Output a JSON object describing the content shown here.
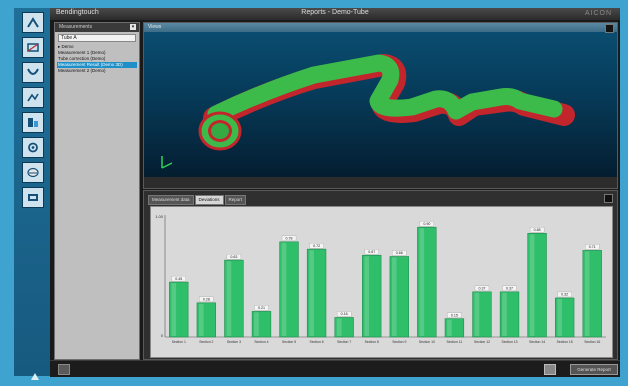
{
  "window": {
    "left_title": "Bendingtouch",
    "title": "Reports - Demo-Tube",
    "logo": "AICON"
  },
  "sidebar": {
    "title": "Measurements",
    "button": "▾",
    "search_value": "Tube A",
    "tree": [
      "▸ Demo",
      "Measurement 1 (Demo)",
      "Tube correction (Demo)",
      "Measurement Result (Demo 3D)",
      "Measurement 2 (Demo)"
    ],
    "selected_index": 3
  },
  "viewport": {
    "title": "Views"
  },
  "report": {
    "tabs": [
      "Measurement data",
      "Deviations",
      "Report"
    ],
    "active_tab": 1,
    "right_button": "Generate Report"
  },
  "colors": {
    "bar": "#2fbf6a",
    "bar_dark": "#1f8f4e",
    "pipe_green": "#3dbb4a",
    "pipe_red": "#c2262c"
  },
  "chart_data": {
    "type": "bar",
    "categories": [
      "Section 1",
      "Section 2",
      "Section 3",
      "Section 4",
      "Section 5",
      "Section 6",
      "Section 7",
      "Section 8",
      "Section 9",
      "Section 10",
      "Section 11",
      "Section 12",
      "Section 13",
      "Section 14",
      "Section 15",
      "Section 16"
    ],
    "values": [
      0.45,
      0.28,
      0.63,
      0.21,
      0.78,
      0.72,
      0.16,
      0.67,
      0.66,
      0.9,
      0.15,
      0.37,
      0.37,
      0.85,
      0.32,
      0.71
    ],
    "labels": [
      "0.45",
      "0.28",
      "0.63",
      "0.21",
      "0.78",
      "0.72",
      "0.16",
      "0.67",
      "0.66",
      "0.90",
      "0.15",
      "0.37",
      "0.37",
      "0.85",
      "0.32",
      "0.71"
    ],
    "ylim": [
      0,
      1
    ],
    "yticks": [
      "1.00",
      "0"
    ]
  }
}
